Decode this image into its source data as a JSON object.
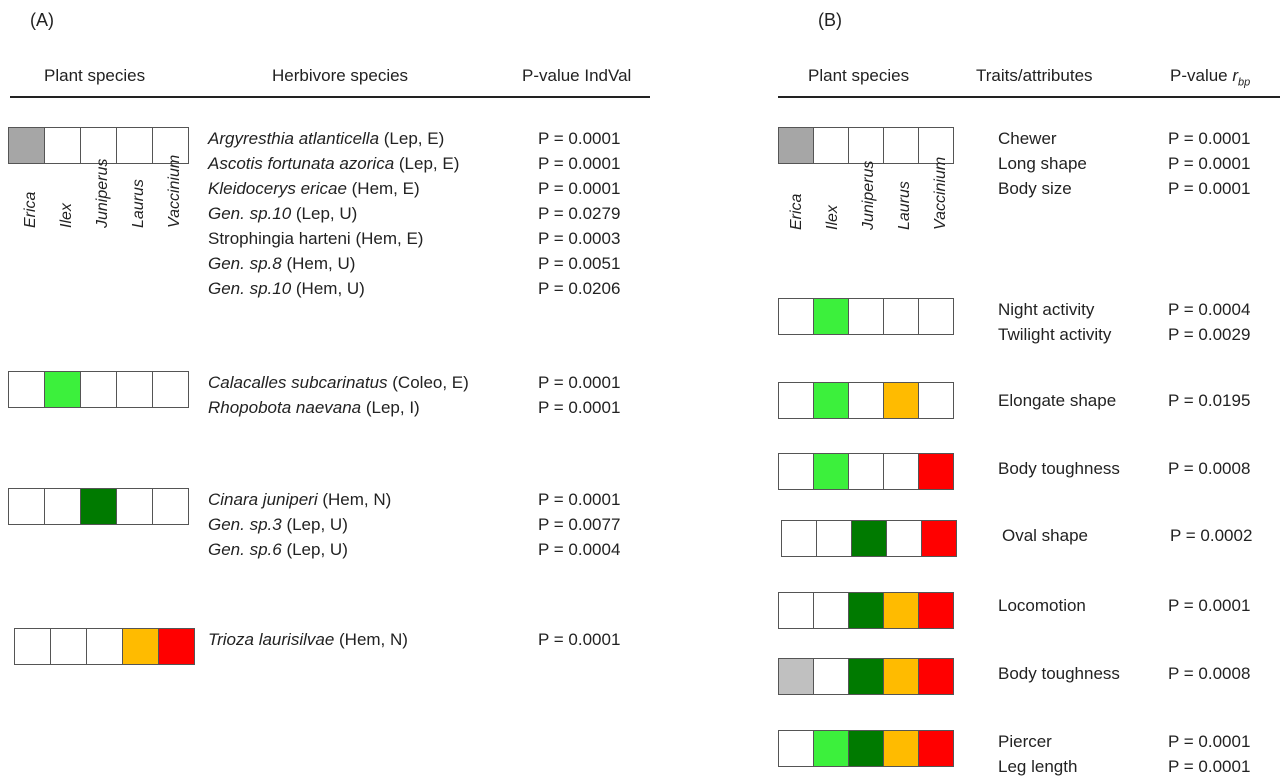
{
  "colors": {
    "none": "#ffffff",
    "erica": "#a6a6a6",
    "erica_light": "#c0c0c0",
    "ilex": "#3cf03c",
    "juniperus": "#007a00",
    "laurus": "#ffbb00",
    "vaccinium": "#ff0000"
  },
  "panelA": {
    "label": "(A)",
    "headers": {
      "plant": "Plant species",
      "herbivore": "Herbivore species",
      "pvalue": "P-value IndVal"
    },
    "species_labels": [
      "Erica",
      "Ilex",
      "Juniperus",
      "Laurus",
      "Vaccinium"
    ],
    "groups": [
      {
        "cells": [
          "erica",
          "none",
          "none",
          "none",
          "none"
        ],
        "rows": [
          {
            "name": "Argyresthia atlanticella",
            "italic": true,
            "note": " (Lep, E)",
            "p": "P = 0.0001"
          },
          {
            "name": "Ascotis fortunata azorica",
            "italic": true,
            "note": " (Lep, E)",
            "p": "P = 0.0001"
          },
          {
            "name": "Kleidocerys ericae",
            "italic": true,
            "note": " (Hem, E)",
            "p": "P = 0.0001"
          },
          {
            "name": "Gen. sp.10",
            "italic": true,
            "note": " (Lep, U)",
            "p": "P = 0.0279"
          },
          {
            "name": "Strophingia harteni",
            "italic": false,
            "note": " (Hem, E)",
            "p": "P = 0.0003"
          },
          {
            "name": "Gen. sp.8",
            "italic": true,
            "note": " (Hem, U)",
            "p": "P = 0.0051"
          },
          {
            "name": "Gen. sp.10",
            "italic": true,
            "note": " (Hem, U)",
            "p": "P = 0.0206"
          }
        ]
      },
      {
        "cells": [
          "none",
          "ilex",
          "none",
          "none",
          "none"
        ],
        "rows": [
          {
            "name": "Calacalles subcarinatus",
            "italic": true,
            "note": " (Coleo, E)",
            "p": "P = 0.0001"
          },
          {
            "name": "Rhopobota naevana",
            "italic": true,
            "note": " (Lep, I)",
            "p": "P = 0.0001"
          }
        ]
      },
      {
        "cells": [
          "none",
          "none",
          "juniperus",
          "none",
          "none"
        ],
        "rows": [
          {
            "name": "Cinara juniperi",
            "italic": true,
            "note": " (Hem, N)",
            "p": "P = 0.0001"
          },
          {
            "name": "Gen. sp.3",
            "italic": true,
            "note": " (Lep, U)",
            "p": "P = 0.0077"
          },
          {
            "name": "Gen. sp.6",
            "italic": true,
            "note": " (Lep, U)",
            "p": "P = 0.0004"
          }
        ]
      },
      {
        "cells": [
          "none",
          "none",
          "none",
          "laurus",
          "vaccinium"
        ],
        "rows": [
          {
            "name": "Trioza laurisilvae",
            "italic": true,
            "note": " (Hem, N)",
            "p": "P = 0.0001"
          }
        ]
      }
    ]
  },
  "panelB": {
    "label": "(B)",
    "headers": {
      "plant": "Plant species",
      "traits": "Traits/attributes",
      "pvalue_prefix": "P-value ",
      "pvalue_r": "r",
      "pvalue_sub": "bp"
    },
    "species_labels": [
      "Erica",
      "Ilex",
      "Juniperus",
      "Laurus",
      "Vaccinium"
    ],
    "groups": [
      {
        "cells": [
          "erica",
          "none",
          "none",
          "none",
          "none"
        ],
        "rows": [
          {
            "trait": "Chewer",
            "p": "P = 0.0001"
          },
          {
            "trait": "Long shape",
            "p": "P = 0.0001"
          },
          {
            "trait": "Body size",
            "p": "P = 0.0001"
          }
        ]
      },
      {
        "cells": [
          "none",
          "ilex",
          "none",
          "none",
          "none"
        ],
        "rows": [
          {
            "trait": "Night activity",
            "p": "P = 0.0004"
          },
          {
            "trait": "Twilight activity",
            "p": "P = 0.0029"
          }
        ]
      },
      {
        "cells": [
          "none",
          "ilex",
          "none",
          "laurus",
          "none"
        ],
        "rows": [
          {
            "trait": "Elongate shape",
            "p": "P = 0.0195"
          }
        ]
      },
      {
        "cells": [
          "none",
          "ilex",
          "none",
          "none",
          "vaccinium"
        ],
        "rows": [
          {
            "trait": "Body toughness",
            "p": "P = 0.0008"
          }
        ]
      },
      {
        "cells": [
          "none",
          "none",
          "juniperus",
          "none",
          "vaccinium"
        ],
        "rows": [
          {
            "trait": "Oval shape",
            "p": "P = 0.0002"
          }
        ]
      },
      {
        "cells": [
          "none",
          "none",
          "juniperus",
          "laurus",
          "vaccinium"
        ],
        "rows": [
          {
            "trait": "Locomotion",
            "p": "P = 0.0001"
          }
        ]
      },
      {
        "cells": [
          "erica_light",
          "none",
          "juniperus",
          "laurus",
          "vaccinium"
        ],
        "rows": [
          {
            "trait": "Body toughness",
            "p": "P = 0.0008"
          }
        ]
      },
      {
        "cells": [
          "none",
          "ilex",
          "juniperus",
          "laurus",
          "vaccinium"
        ],
        "rows": [
          {
            "trait": "Piercer",
            "p": "P = 0.0001"
          },
          {
            "trait": "Leg length",
            "p": "P = 0.0001"
          }
        ]
      }
    ]
  }
}
